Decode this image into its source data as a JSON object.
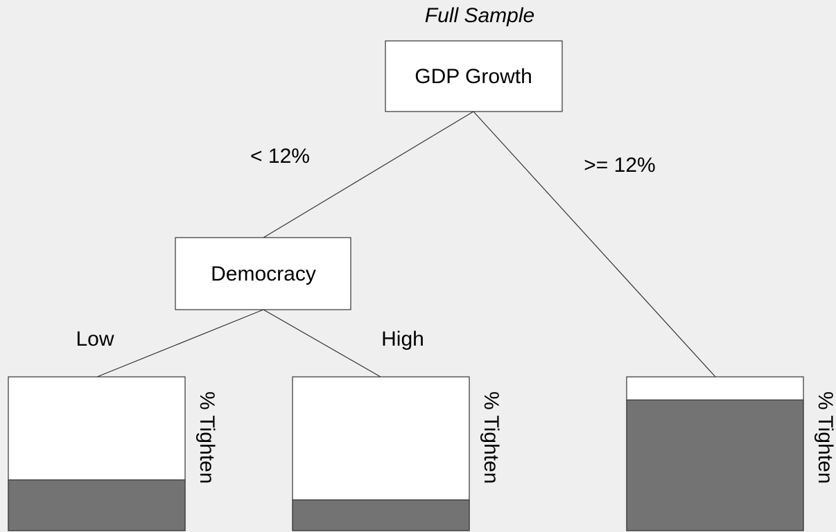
{
  "title": "Full Sample",
  "nodes": [
    {
      "label": "GDP Growth"
    },
    {
      "label": "Democracy"
    }
  ],
  "edges": [
    {
      "label": "< 12%"
    },
    {
      "label": ">= 12%"
    },
    {
      "label": "Low"
    },
    {
      "label": "High"
    }
  ],
  "leaves": [
    {
      "label": "% Tighten",
      "value": 33,
      "color": "#737373"
    },
    {
      "label": "% Tighten",
      "value": 20,
      "color": "#737373"
    },
    {
      "label": "% Tighten",
      "value": 85,
      "color": "#737373"
    }
  ]
}
